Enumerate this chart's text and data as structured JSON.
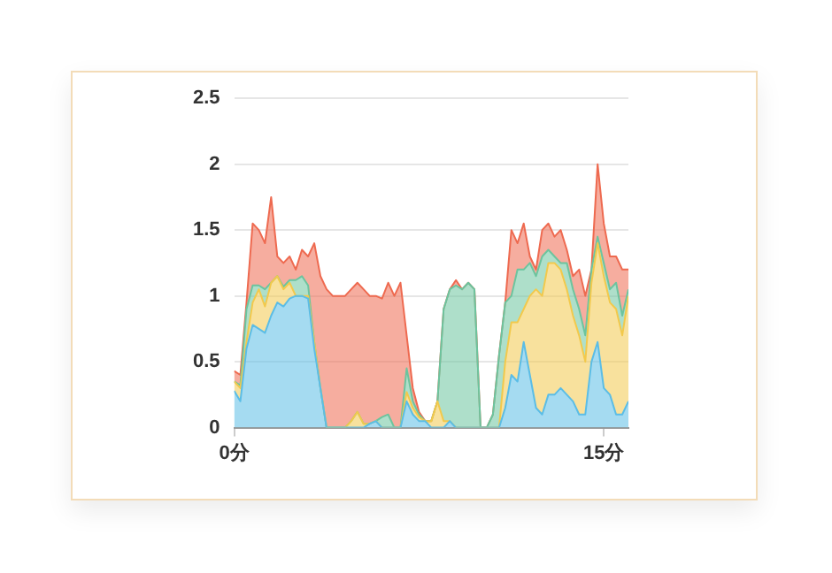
{
  "chart_data": {
    "type": "area",
    "stacked": true,
    "grid": "y",
    "marker": "none",
    "line_style": "solid",
    "x": [
      0,
      0.25,
      0.5,
      0.75,
      1,
      1.25,
      1.5,
      1.75,
      2,
      2.25,
      2.5,
      2.75,
      3,
      3.25,
      3.5,
      3.75,
      4,
      4.25,
      4.5,
      4.75,
      5,
      5.25,
      5.5,
      5.75,
      6,
      6.25,
      6.5,
      6.75,
      7,
      7.25,
      7.5,
      7.75,
      8,
      8.25,
      8.5,
      8.75,
      9,
      9.25,
      9.5,
      9.75,
      10,
      10.25,
      10.5,
      10.75,
      11,
      11.25,
      11.5,
      11.75,
      12,
      12.25,
      12.5,
      12.75,
      13,
      13.25,
      13.5,
      13.75,
      14,
      14.25,
      14.5,
      14.75,
      15,
      15.25,
      15.5,
      15.75,
      16
    ],
    "xlim": [
      0,
      16
    ],
    "xticks": [
      {
        "value": 0,
        "label": "0分"
      },
      {
        "value": 15,
        "label": "15分"
      }
    ],
    "ylim": [
      0,
      2.5
    ],
    "yticks": [
      0,
      0.5,
      1,
      1.5,
      2,
      2.5
    ],
    "series": [
      {
        "color": "#5bbde6",
        "values": [
          0.28,
          0.2,
          0.6,
          0.78,
          0.75,
          0.72,
          0.85,
          0.95,
          0.92,
          0.98,
          1,
          1,
          0.98,
          0.6,
          0.3,
          0,
          0,
          0,
          0,
          0,
          0,
          0,
          0.03,
          0.05,
          0,
          0,
          0,
          0,
          0.2,
          0.1,
          0.05,
          0.05,
          0,
          0,
          0,
          0.05,
          0,
          0,
          0,
          0,
          0,
          0,
          0,
          0,
          0.15,
          0.4,
          0.35,
          0.65,
          0.4,
          0.15,
          0.1,
          0.25,
          0.25,
          0.3,
          0.25,
          0.2,
          0.1,
          0.1,
          0.5,
          0.65,
          0.3,
          0.25,
          0.1,
          0.1,
          0.2
        ]
      },
      {
        "color": "#f2c94c",
        "values": [
          0.07,
          0.1,
          0.05,
          0.17,
          0.3,
          0.2,
          0.25,
          0.2,
          0.13,
          0.12,
          0,
          0,
          0.02,
          0.05,
          0,
          0,
          0,
          0,
          0,
          0.05,
          0.12,
          0.03,
          0,
          0,
          0,
          0,
          0,
          0,
          0.07,
          0.05,
          0.03,
          0,
          0.05,
          0.2,
          0.05,
          0,
          0,
          0,
          0,
          0,
          0,
          0,
          0,
          0,
          0.35,
          0.4,
          0.45,
          0.25,
          0.6,
          0.9,
          0.9,
          1,
          1,
          0.9,
          0.8,
          0.65,
          0.6,
          0.4,
          0.6,
          0.75,
          0.85,
          0.7,
          0.8,
          0.6,
          0.8
        ]
      },
      {
        "color": "#6cc49e",
        "values": [
          0,
          0.02,
          0.25,
          0.13,
          0.03,
          0.13,
          0,
          0,
          0.02,
          0.02,
          0.12,
          0.15,
          0.08,
          0,
          0,
          0,
          0,
          0,
          0,
          0,
          0,
          0,
          0,
          0,
          0.08,
          0.1,
          0,
          0,
          0.18,
          0.05,
          0.02,
          0,
          0,
          0,
          0.85,
          1,
          1.08,
          1.05,
          1.1,
          1.05,
          0,
          0,
          0.1,
          0.55,
          0.45,
          0.2,
          0.4,
          0.3,
          0.25,
          0.1,
          0.3,
          0.1,
          0.05,
          0.05,
          0.2,
          0.2,
          0.2,
          0.2,
          0.1,
          0.05,
          0.1,
          0.1,
          0.2,
          0.15,
          0.05
        ]
      },
      {
        "color": "#ee6a50",
        "values": [
          0.08,
          0.08,
          0.05,
          0.47,
          0.42,
          0.35,
          0.65,
          0.15,
          0.18,
          0.18,
          0.08,
          0.2,
          0.22,
          0.75,
          0.85,
          1.05,
          1,
          1,
          1,
          1,
          0.98,
          1.02,
          0.97,
          0.95,
          0.9,
          1,
          1,
          1.1,
          0.25,
          0.1,
          0.02,
          0,
          0,
          0,
          0,
          0,
          0.04,
          0,
          0,
          0,
          0,
          0,
          0,
          0,
          0,
          0.5,
          0.2,
          0.35,
          0.05,
          0.05,
          0.2,
          0.2,
          0.15,
          0.25,
          0.1,
          0.1,
          0.3,
          0.3,
          0,
          0.55,
          0.3,
          0.25,
          0.2,
          0.35,
          0.15
        ]
      }
    ]
  }
}
